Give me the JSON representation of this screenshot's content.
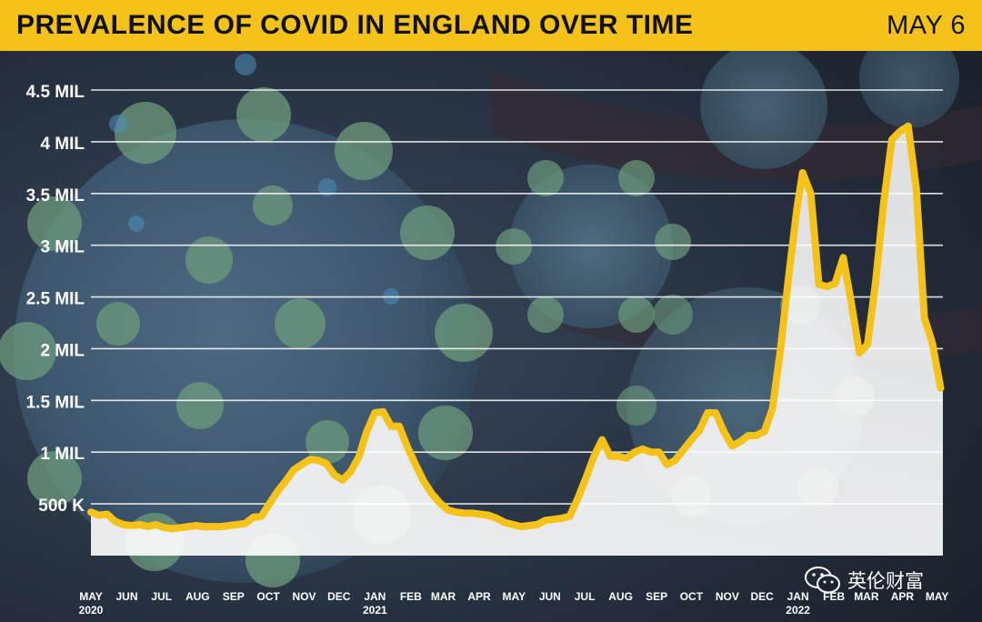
{
  "header": {
    "title": "PREVALENCE OF COVID IN ENGLAND OVER TIME",
    "date": "MAY 6"
  },
  "watermark": {
    "label": "英伦财富",
    "icon": "wechat-icon"
  },
  "colors": {
    "header_bg": "#f5c21a",
    "line": "#f5c21a",
    "area_fill": "#ffffff",
    "gridline": "#ffffff"
  },
  "chart_data": {
    "type": "area",
    "title": "PREVALENCE OF COVID IN ENGLAND OVER TIME",
    "ylabel": "",
    "xlabel": "",
    "ylim": [
      0,
      4500000
    ],
    "xlim": [
      "2020-05-01",
      "2022-05-06"
    ],
    "y_ticks": [
      500000,
      1000000,
      1500000,
      2000000,
      2500000,
      3000000,
      3500000,
      4000000,
      4500000
    ],
    "y_tick_labels": [
      "500 K",
      "1 MIL",
      "1.5 MIL",
      "2 MIL",
      "2.5 MIL",
      "3 MIL",
      "3.5 MIL",
      "4 MIL",
      "4.5 MIL"
    ],
    "x_ticks": [
      {
        "date": "2020-05-01",
        "label": "MAY",
        "year": "2020"
      },
      {
        "date": "2020-06-01",
        "label": "JUN"
      },
      {
        "date": "2020-07-01",
        "label": "JUL"
      },
      {
        "date": "2020-08-01",
        "label": "AUG"
      },
      {
        "date": "2020-09-01",
        "label": "SEP"
      },
      {
        "date": "2020-10-01",
        "label": "OCT"
      },
      {
        "date": "2020-11-01",
        "label": "NOV"
      },
      {
        "date": "2020-12-01",
        "label": "DEC"
      },
      {
        "date": "2021-01-01",
        "label": "JAN",
        "year": "2021"
      },
      {
        "date": "2021-02-01",
        "label": "FEB"
      },
      {
        "date": "2021-03-01",
        "label": "MAR"
      },
      {
        "date": "2021-04-01",
        "label": "APR"
      },
      {
        "date": "2021-05-01",
        "label": "MAY"
      },
      {
        "date": "2021-06-01",
        "label": "JUN"
      },
      {
        "date": "2021-07-01",
        "label": "JUL"
      },
      {
        "date": "2021-08-01",
        "label": "AUG"
      },
      {
        "date": "2021-09-01",
        "label": "SEP"
      },
      {
        "date": "2021-10-01",
        "label": "OCT"
      },
      {
        "date": "2021-11-01",
        "label": "NOV"
      },
      {
        "date": "2021-12-01",
        "label": "DEC"
      },
      {
        "date": "2022-01-01",
        "label": "JAN",
        "year": "2022"
      },
      {
        "date": "2022-02-01",
        "label": "FEB"
      },
      {
        "date": "2022-03-01",
        "label": "MAR"
      },
      {
        "date": "2022-04-01",
        "label": "APR"
      },
      {
        "date": "2022-05-01",
        "label": "MAY"
      }
    ],
    "grid": true,
    "legend": "none",
    "series": [
      {
        "points": [
          [
            "2020-05-01",
            420000
          ],
          [
            "2020-05-08",
            390000
          ],
          [
            "2020-05-15",
            400000
          ],
          [
            "2020-05-22",
            330000
          ],
          [
            "2020-05-29",
            300000
          ],
          [
            "2020-06-05",
            290000
          ],
          [
            "2020-06-12",
            300000
          ],
          [
            "2020-06-19",
            280000
          ],
          [
            "2020-06-26",
            300000
          ],
          [
            "2020-07-03",
            270000
          ],
          [
            "2020-07-10",
            260000
          ],
          [
            "2020-07-17",
            270000
          ],
          [
            "2020-07-24",
            280000
          ],
          [
            "2020-07-31",
            290000
          ],
          [
            "2020-08-07",
            280000
          ],
          [
            "2020-08-14",
            280000
          ],
          [
            "2020-08-21",
            280000
          ],
          [
            "2020-08-28",
            290000
          ],
          [
            "2020-09-04",
            300000
          ],
          [
            "2020-09-11",
            310000
          ],
          [
            "2020-09-18",
            370000
          ],
          [
            "2020-09-25",
            380000
          ],
          [
            "2020-10-02",
            500000
          ],
          [
            "2020-10-09",
            620000
          ],
          [
            "2020-10-16",
            720000
          ],
          [
            "2020-10-23",
            830000
          ],
          [
            "2020-10-30",
            880000
          ],
          [
            "2020-11-06",
            930000
          ],
          [
            "2020-11-13",
            920000
          ],
          [
            "2020-11-20",
            890000
          ],
          [
            "2020-11-27",
            780000
          ],
          [
            "2020-12-04",
            730000
          ],
          [
            "2020-12-11",
            810000
          ],
          [
            "2020-12-18",
            950000
          ],
          [
            "2020-12-25",
            1200000
          ],
          [
            "2021-01-01",
            1380000
          ],
          [
            "2021-01-08",
            1390000
          ],
          [
            "2021-01-15",
            1250000
          ],
          [
            "2021-01-22",
            1250000
          ],
          [
            "2021-01-29",
            1050000
          ],
          [
            "2021-02-05",
            880000
          ],
          [
            "2021-02-12",
            720000
          ],
          [
            "2021-02-19",
            600000
          ],
          [
            "2021-02-26",
            510000
          ],
          [
            "2021-03-05",
            440000
          ],
          [
            "2021-03-12",
            420000
          ],
          [
            "2021-03-19",
            410000
          ],
          [
            "2021-03-26",
            410000
          ],
          [
            "2021-04-02",
            400000
          ],
          [
            "2021-04-09",
            390000
          ],
          [
            "2021-04-16",
            360000
          ],
          [
            "2021-04-23",
            320000
          ],
          [
            "2021-04-30",
            300000
          ],
          [
            "2021-05-07",
            280000
          ],
          [
            "2021-05-14",
            290000
          ],
          [
            "2021-05-21",
            300000
          ],
          [
            "2021-05-28",
            340000
          ],
          [
            "2021-06-04",
            350000
          ],
          [
            "2021-06-11",
            360000
          ],
          [
            "2021-06-18",
            380000
          ],
          [
            "2021-06-25",
            550000
          ],
          [
            "2021-07-02",
            750000
          ],
          [
            "2021-07-09",
            960000
          ],
          [
            "2021-07-16",
            1120000
          ],
          [
            "2021-07-23",
            960000
          ],
          [
            "2021-07-30",
            960000
          ],
          [
            "2021-08-06",
            940000
          ],
          [
            "2021-08-13",
            1000000
          ],
          [
            "2021-08-20",
            1030000
          ],
          [
            "2021-08-27",
            1000000
          ],
          [
            "2021-09-03",
            1000000
          ],
          [
            "2021-09-10",
            880000
          ],
          [
            "2021-09-17",
            920000
          ],
          [
            "2021-09-24",
            1020000
          ],
          [
            "2021-10-01",
            1120000
          ],
          [
            "2021-10-08",
            1210000
          ],
          [
            "2021-10-15",
            1380000
          ],
          [
            "2021-10-22",
            1380000
          ],
          [
            "2021-10-29",
            1200000
          ],
          [
            "2021-11-05",
            1060000
          ],
          [
            "2021-11-12",
            1100000
          ],
          [
            "2021-11-19",
            1160000
          ],
          [
            "2021-11-26",
            1160000
          ],
          [
            "2021-12-03",
            1200000
          ],
          [
            "2021-12-10",
            1420000
          ],
          [
            "2021-12-17",
            2000000
          ],
          [
            "2021-12-24",
            2700000
          ],
          [
            "2021-12-31",
            3350000
          ],
          [
            "2022-01-05",
            3700000
          ],
          [
            "2022-01-12",
            3500000
          ],
          [
            "2022-01-19",
            2620000
          ],
          [
            "2022-01-26",
            2600000
          ],
          [
            "2022-02-02",
            2630000
          ],
          [
            "2022-02-09",
            2880000
          ],
          [
            "2022-02-16",
            2440000
          ],
          [
            "2022-02-23",
            1960000
          ],
          [
            "2022-03-02",
            2040000
          ],
          [
            "2022-03-09",
            2650000
          ],
          [
            "2022-03-16",
            3420000
          ],
          [
            "2022-03-23",
            4020000
          ],
          [
            "2022-03-30",
            4100000
          ],
          [
            "2022-04-06",
            4150000
          ],
          [
            "2022-04-13",
            3550000
          ],
          [
            "2022-04-20",
            2300000
          ],
          [
            "2022-04-27",
            2050000
          ],
          [
            "2022-05-04",
            1620000
          ]
        ]
      }
    ]
  }
}
